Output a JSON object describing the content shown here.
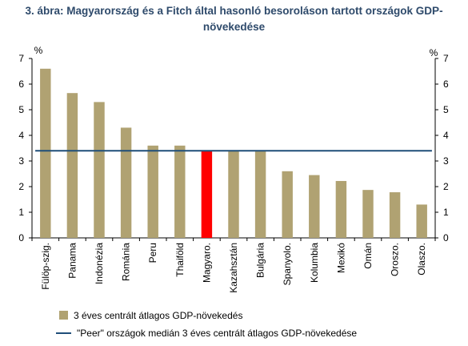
{
  "chart_data": {
    "type": "bar",
    "title_line1": "3. ábra: Magyarország és a Fitch által hasonló besoroláson tartott országok GDP-",
    "title_line2": "növekedése",
    "ylabel_left": "%",
    "ylabel_right": "%",
    "ylim": [
      0,
      7
    ],
    "yticks": [
      0,
      1,
      2,
      3,
      4,
      5,
      6,
      7
    ],
    "grid": false,
    "legend_position": "bottom",
    "categories": [
      "Fülöp-szig.",
      "Panama",
      "Indonézia",
      "Románia",
      "Peru",
      "Thaiföld",
      "Magyaro.",
      "Kazahsztán",
      "Bulgária",
      "Spanyolo.",
      "Kolumbia",
      "Mexikó",
      "Omán",
      "Oroszo.",
      "Olaszo."
    ],
    "series": [
      {
        "name": "3 éves centrált átlagos GDP-növekedés",
        "type": "bar",
        "color": "#B0A272",
        "highlight_color": "#FF0000",
        "highlight_index": 6,
        "values": [
          6.6,
          5.65,
          5.3,
          4.3,
          3.6,
          3.6,
          3.4,
          3.4,
          3.4,
          2.6,
          2.45,
          2.22,
          1.87,
          1.78,
          1.3
        ]
      },
      {
        "name": "\"Peer\" országok medián 3 éves centrált átlagos GDP-növekedése",
        "type": "line",
        "color": "#1F4E79",
        "value": 3.4
      }
    ]
  }
}
